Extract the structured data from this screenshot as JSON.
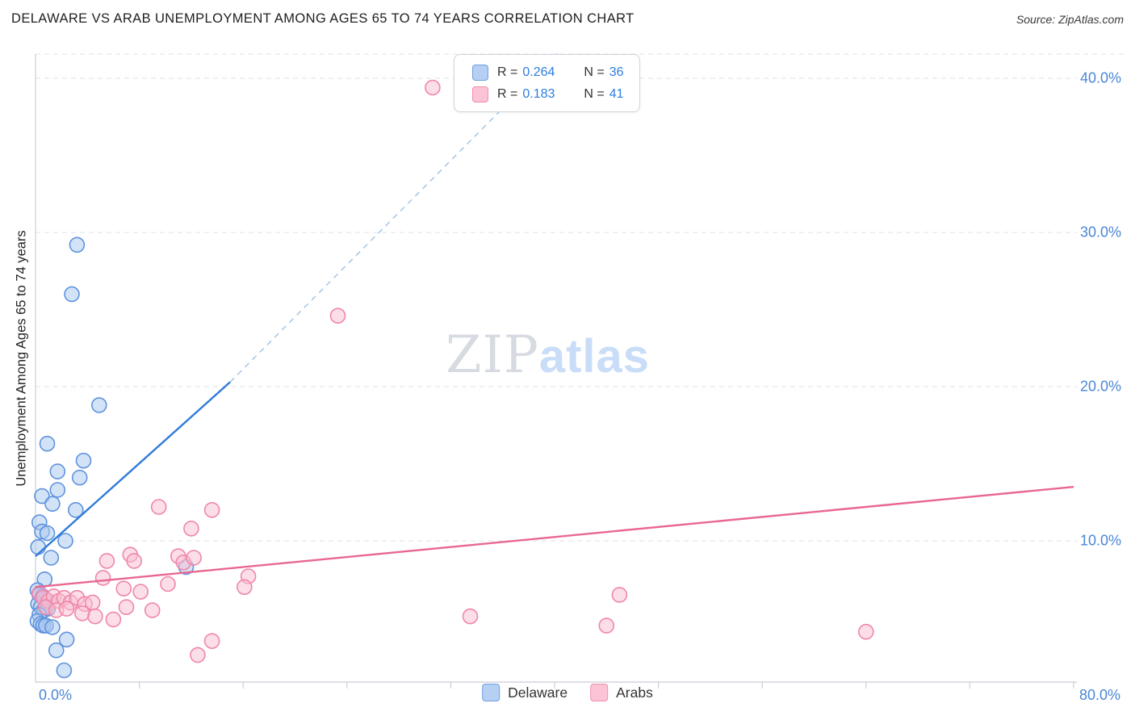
{
  "header": {
    "title": "DELAWARE VS ARAB UNEMPLOYMENT AMONG AGES 65 TO 74 YEARS CORRELATION CHART",
    "source": "Source: ZipAtlas.com"
  },
  "watermark": {
    "part1": "ZIP",
    "part2": "atlas"
  },
  "colors": {
    "blue_fill": "#a7c8f0",
    "blue_stroke": "#5f93dd",
    "blue_line": "#2f7bd9",
    "pink_fill": "#f9bed2",
    "pink_stroke": "#ef87a8",
    "pink_line": "#e96790",
    "dashed_line": "#9fc0e2",
    "grid": "#dde2e8",
    "axis": "#c9ced6",
    "label_blue": "#4a86d8",
    "text_dark": "#333333"
  },
  "legend_box": {
    "rows": [
      {
        "r_label": "R =",
        "r": "0.264",
        "n_label": "N =",
        "n": "36"
      },
      {
        "r_label": "R =",
        "r": "0.183",
        "n_label": "N =",
        "n": "41"
      }
    ]
  },
  "bottom_legend": [
    {
      "label": "Delaware"
    },
    {
      "label": "Arabs"
    }
  ],
  "chart_data": {
    "type": "scatter",
    "title": "DELAWARE VS ARAB UNEMPLOYMENT AMONG AGES 65 TO 74 YEARS CORRELATION CHART",
    "xlabel": "",
    "ylabel": "Unemployment Among Ages 65 to 74 years",
    "xlim": [
      0,
      80
    ],
    "ylim": [
      0.84,
      41.57
    ],
    "grid": "horizontal-dashed",
    "legend_position": "top-center and bottom-center",
    "x_ticks_labeled": [
      "0.0%",
      "80.0%"
    ],
    "x_tick_step": 8,
    "y_ticks": [
      10,
      20,
      30,
      40
    ],
    "y_tick_labels": [
      "10.0%",
      "20.0%",
      "30.0%",
      "40.0%"
    ],
    "series": [
      {
        "name": "Delaware",
        "R": 0.264,
        "N": 36,
        "points": [
          [
            3.2,
            29.2
          ],
          [
            2.8,
            26.0
          ],
          [
            4.9,
            18.8
          ],
          [
            0.9,
            16.3
          ],
          [
            3.7,
            15.2
          ],
          [
            1.7,
            14.5
          ],
          [
            3.4,
            14.1
          ],
          [
            1.7,
            13.3
          ],
          [
            0.5,
            12.9
          ],
          [
            1.3,
            12.4
          ],
          [
            3.1,
            12.0
          ],
          [
            0.3,
            11.2
          ],
          [
            0.5,
            10.6
          ],
          [
            0.9,
            10.5
          ],
          [
            2.3,
            10.0
          ],
          [
            0.2,
            9.6
          ],
          [
            1.2,
            8.9
          ],
          [
            11.6,
            8.3
          ],
          [
            0.7,
            7.5
          ],
          [
            0.15,
            6.8
          ],
          [
            0.3,
            6.5
          ],
          [
            0.55,
            6.4
          ],
          [
            0.75,
            6.2
          ],
          [
            0.2,
            5.9
          ],
          [
            0.4,
            5.7
          ],
          [
            0.65,
            5.5
          ],
          [
            0.95,
            5.6
          ],
          [
            0.3,
            5.2
          ],
          [
            0.15,
            4.8
          ],
          [
            0.4,
            4.6
          ],
          [
            0.6,
            4.5
          ],
          [
            0.8,
            4.5
          ],
          [
            1.3,
            4.4
          ],
          [
            2.4,
            3.6
          ],
          [
            1.6,
            2.9
          ],
          [
            2.2,
            1.6
          ]
        ]
      },
      {
        "name": "Arabs",
        "R": 0.183,
        "N": 41,
        "points": [
          [
            30.6,
            39.4
          ],
          [
            23.3,
            24.6
          ],
          [
            9.5,
            12.2
          ],
          [
            13.6,
            12.0
          ],
          [
            12.0,
            10.8
          ],
          [
            7.3,
            9.1
          ],
          [
            7.6,
            8.7
          ],
          [
            5.5,
            8.7
          ],
          [
            11.0,
            9.0
          ],
          [
            11.4,
            8.6
          ],
          [
            12.2,
            8.9
          ],
          [
            5.2,
            7.6
          ],
          [
            16.4,
            7.7
          ],
          [
            16.1,
            7.0
          ],
          [
            6.8,
            6.9
          ],
          [
            8.1,
            6.7
          ],
          [
            10.2,
            7.2
          ],
          [
            0.3,
            6.6
          ],
          [
            0.6,
            6.3
          ],
          [
            1.0,
            6.1
          ],
          [
            1.4,
            6.4
          ],
          [
            1.8,
            6.1
          ],
          [
            2.2,
            6.3
          ],
          [
            2.7,
            6.0
          ],
          [
            3.2,
            6.3
          ],
          [
            3.8,
            5.9
          ],
          [
            4.4,
            6.0
          ],
          [
            0.8,
            5.7
          ],
          [
            1.6,
            5.5
          ],
          [
            2.4,
            5.6
          ],
          [
            3.6,
            5.3
          ],
          [
            4.6,
            5.1
          ],
          [
            6.0,
            4.9
          ],
          [
            7.0,
            5.7
          ],
          [
            9.0,
            5.5
          ],
          [
            33.5,
            5.1
          ],
          [
            45.0,
            6.5
          ],
          [
            44.0,
            4.5
          ],
          [
            64.0,
            4.1
          ],
          [
            13.6,
            3.5
          ],
          [
            12.5,
            2.6
          ]
        ]
      }
    ],
    "trend_lines": [
      {
        "name": "Delaware",
        "color_key": "blue_line",
        "solid": [
          [
            0,
            9.0
          ],
          [
            15,
            20.3
          ]
        ],
        "dashed": [
          [
            15,
            20.3
          ],
          [
            40.2,
            41.6
          ]
        ]
      },
      {
        "name": "Arabs",
        "color_key": "pink_line",
        "solid": [
          [
            0,
            7.0
          ],
          [
            80,
            13.5
          ]
        ]
      }
    ]
  }
}
